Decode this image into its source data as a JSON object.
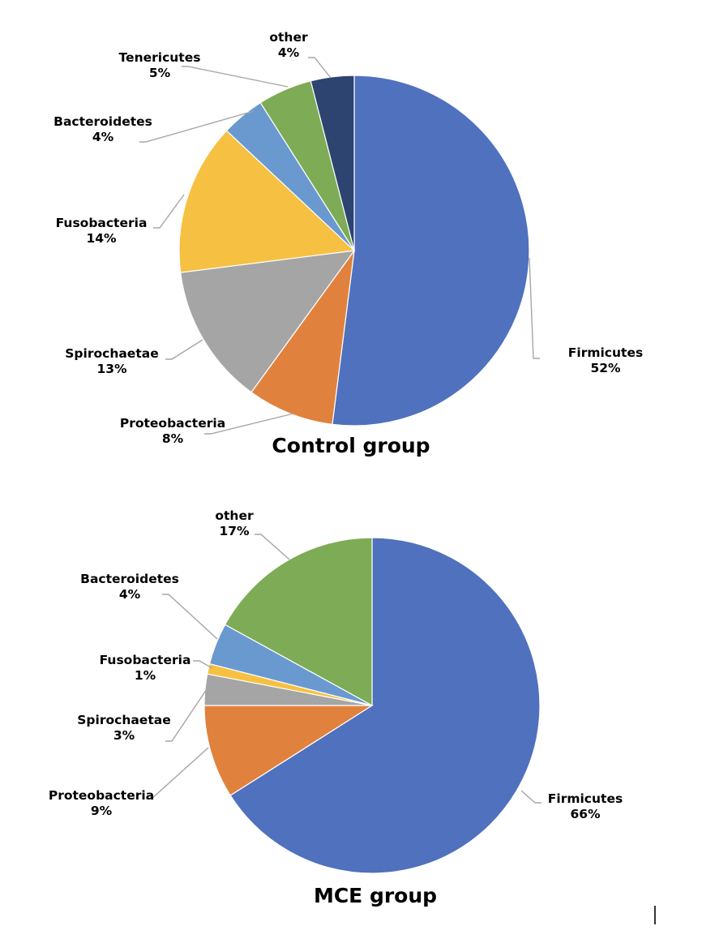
{
  "chart_data": [
    {
      "type": "pie",
      "title": "Control group",
      "slices": [
        {
          "name": "Firmicutes",
          "label": "52%",
          "value": 52,
          "color": "#4f71be"
        },
        {
          "name": "Proteobacteria",
          "label": "8%",
          "value": 8,
          "color": "#e0823e"
        },
        {
          "name": "Spirochaetae",
          "label": "13%",
          "value": 13,
          "color": "#a5a5a5"
        },
        {
          "name": "Fusobacteria",
          "label": "14%",
          "value": 14,
          "color": "#f6c142"
        },
        {
          "name": "Bacteroidetes",
          "label": "4%",
          "value": 4,
          "color": "#6a99d0"
        },
        {
          "name": "Tenericutes",
          "label": "5%",
          "value": 5,
          "color": "#7eab55"
        },
        {
          "name": "other",
          "label": "4%",
          "value": 4,
          "color": "#2d4471"
        }
      ]
    },
    {
      "type": "pie",
      "title": "MCE group",
      "slices": [
        {
          "name": "Firmicutes",
          "label": "66%",
          "value": 66,
          "color": "#4f71be"
        },
        {
          "name": "Proteobacteria",
          "label": "9%",
          "value": 9,
          "color": "#e0823e"
        },
        {
          "name": "Spirochaetae",
          "label": "3%",
          "value": 3,
          "color": "#a5a5a5"
        },
        {
          "name": "Fusobacteria",
          "label": "1%",
          "value": 1,
          "color": "#f6c142"
        },
        {
          "name": "Bacteroidetes",
          "label": "4%",
          "value": 4,
          "color": "#6a99d0"
        },
        {
          "name": "other",
          "label": "17%",
          "value": 17,
          "color": "#7eab55"
        }
      ]
    }
  ]
}
